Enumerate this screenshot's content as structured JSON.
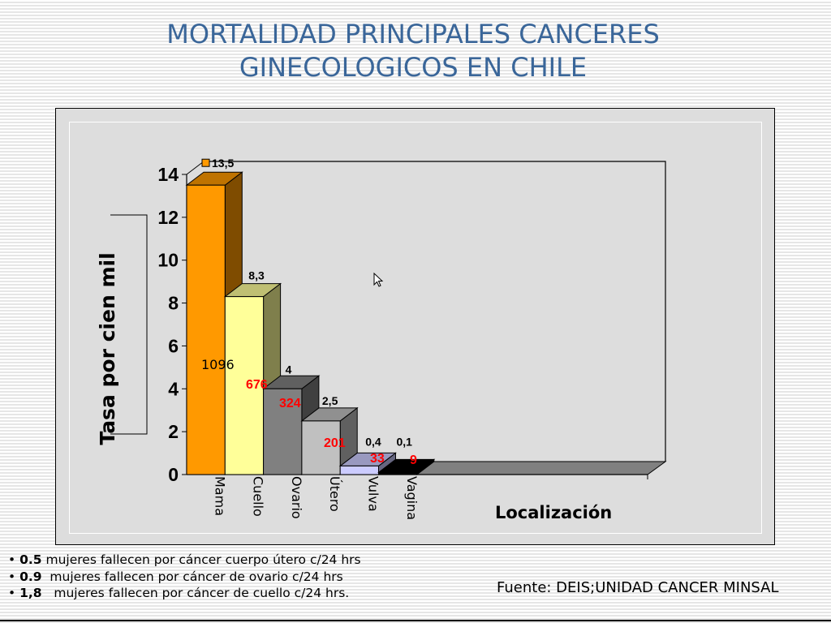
{
  "slide": {
    "title_line1": "MORTALIDAD PRINCIPALES CANCERES",
    "title_line2": "GINECOLOGICOS EN CHILE",
    "notes": [
      {
        "bullet": "•",
        "value": "0.5",
        "text": "mujeres fallecen por cáncer cuerpo útero c/24 hrs"
      },
      {
        "bullet": "•",
        "value": "0.9",
        "text": " mujeres fallecen por cáncer de ovario c/24 hrs"
      },
      {
        "bullet": "•",
        "value": "1,8",
        "text": "  mujeres fallecen por cáncer de cuello c/24 hrs."
      }
    ],
    "source": "Fuente: DEIS;UNIDAD CANCER MINSAL"
  },
  "chart_data": {
    "type": "bar",
    "style": "3d",
    "title": "",
    "xlabel": "Localización",
    "ylabel": "Tasa por cien mil",
    "ylim": [
      0,
      14
    ],
    "yticks": [
      0,
      2,
      4,
      6,
      8,
      10,
      12,
      14
    ],
    "grid": false,
    "categories": [
      "Mama",
      "Cuello",
      "Ovario",
      "Útero",
      "Vulva",
      "Vagina"
    ],
    "values": [
      13.5,
      8.3,
      4,
      2.5,
      0.4,
      0.1
    ],
    "value_labels": [
      "13,5",
      "8,3",
      "4",
      "2,5",
      "0,4",
      "0,1"
    ],
    "death_counts": [
      "1096",
      "676",
      "324",
      "201",
      "33",
      "9"
    ],
    "colors": {
      "front": [
        "#ff9900",
        "#ffff99",
        "#808080",
        "#c0c0c0",
        "#ccccff",
        "#000000"
      ],
      "top": [
        "#bf7300",
        "#bfbf73",
        "#606060",
        "#909090",
        "#9999bf",
        "#000000"
      ],
      "side": [
        "#7f4c00",
        "#7f7f4c",
        "#404040",
        "#606060",
        "#666680",
        "#000000"
      ],
      "death_count_color": "#ff0000",
      "death_count_first_color": "#000000"
    },
    "legend": {
      "marker_color": "#ff9900"
    }
  }
}
